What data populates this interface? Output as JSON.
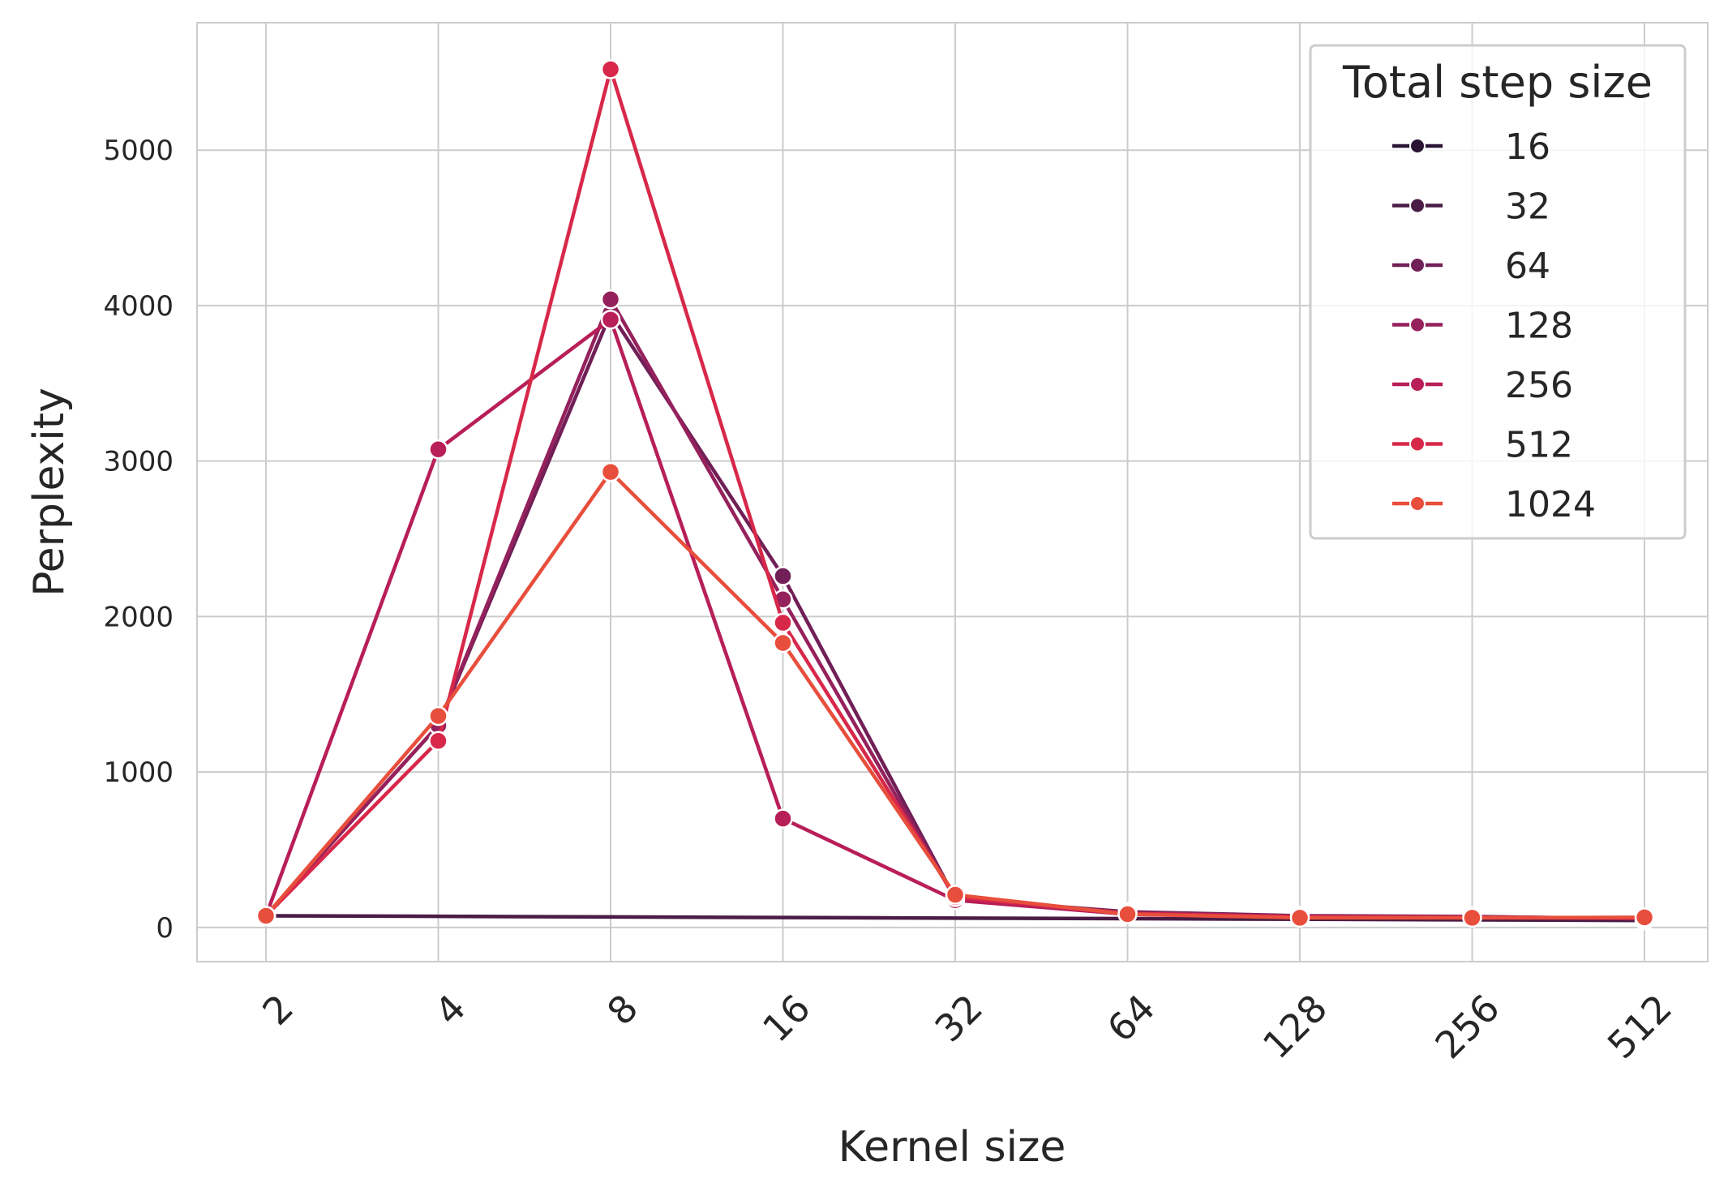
{
  "chart_data": {
    "type": "line",
    "xlabel": "Kernel size",
    "ylabel": "Perplexity",
    "categories": [
      "2",
      "4",
      "8",
      "16",
      "32",
      "64",
      "128",
      "256",
      "512"
    ],
    "yticks": [
      "0",
      "1000",
      "2000",
      "3000",
      "4000",
      "5000"
    ],
    "ylim": [
      -220,
      5820
    ],
    "grid": true,
    "legend": {
      "title": "Total step size",
      "placement": "top-right"
    },
    "colors": {
      "16": "#2a1535",
      "32": "#4b1c45",
      "64": "#711f57",
      "128": "#95215c",
      "256": "#b81e58",
      "512": "#d8284a",
      "1024": "#e84e3c"
    },
    "series": [
      {
        "name": "16",
        "color": "#2a1535",
        "values": [
          75,
          null,
          null,
          null,
          null,
          null,
          null,
          null,
          null
        ]
      },
      {
        "name": "32",
        "color": "#4b1c45",
        "values": [
          75,
          null,
          null,
          null,
          null,
          null,
          null,
          null,
          45
        ]
      },
      {
        "name": "64",
        "color": "#711f57",
        "values": [
          75,
          1300,
          3950,
          2260,
          185,
          100,
          75,
          70,
          55
        ]
      },
      {
        "name": "128",
        "color": "#95215c",
        "values": [
          75,
          1300,
          4040,
          2110,
          185,
          95,
          72,
          68,
          58
        ]
      },
      {
        "name": "256",
        "color": "#b81e58",
        "values": [
          75,
          3075,
          3910,
          700,
          175,
          85,
          65,
          62,
          60
        ]
      },
      {
        "name": "512",
        "color": "#d8284a",
        "values": [
          75,
          1200,
          5520,
          1960,
          195,
          90,
          68,
          64,
          62
        ]
      },
      {
        "name": "1024",
        "color": "#e84e3c",
        "values": [
          75,
          1360,
          2930,
          1830,
          210,
          85,
          62,
          62,
          65
        ]
      }
    ]
  }
}
